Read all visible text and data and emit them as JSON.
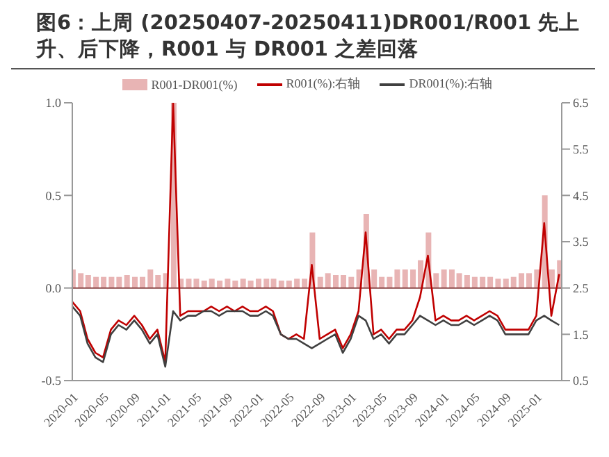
{
  "chart_data": {
    "type": "line",
    "title": "图6：上周 (20250407-20250411)DR001/R001  先上升、后下降，R001 与 DR001 之差回落",
    "x": [
      "2020-01",
      "2020-02",
      "2020-03",
      "2020-04",
      "2020-05",
      "2020-06",
      "2020-07",
      "2020-08",
      "2020-09",
      "2020-10",
      "2020-11",
      "2020-12",
      "2021-01",
      "2021-02",
      "2021-03",
      "2021-04",
      "2021-05",
      "2021-06",
      "2021-07",
      "2021-08",
      "2021-09",
      "2021-10",
      "2021-11",
      "2021-12",
      "2022-01",
      "2022-02",
      "2022-03",
      "2022-04",
      "2022-05",
      "2022-06",
      "2022-07",
      "2022-08",
      "2022-09",
      "2022-10",
      "2022-11",
      "2022-12",
      "2023-01",
      "2023-02",
      "2023-03",
      "2023-04",
      "2023-05",
      "2023-06",
      "2023-07",
      "2023-08",
      "2023-09",
      "2023-10",
      "2023-11",
      "2023-12",
      "2024-01",
      "2024-02",
      "2024-03",
      "2024-04",
      "2024-05",
      "2024-06",
      "2024-07",
      "2024-08",
      "2024-09",
      "2024-10",
      "2024-11",
      "2024-12",
      "2025-01",
      "2025-02",
      "2025-03",
      "2025-04"
    ],
    "series": [
      {
        "name": "R001-DR001(%)",
        "type": "bar",
        "color": "#e8b4b4",
        "values": [
          0.1,
          0.08,
          0.07,
          0.06,
          0.06,
          0.06,
          0.06,
          0.07,
          0.06,
          0.06,
          0.1,
          0.07,
          0.08,
          1.0,
          0.05,
          0.05,
          0.05,
          0.04,
          0.05,
          0.04,
          0.05,
          0.04,
          0.05,
          0.04,
          0.05,
          0.05,
          0.05,
          0.04,
          0.04,
          0.05,
          0.05,
          0.3,
          0.06,
          0.08,
          0.07,
          0.07,
          0.06,
          0.1,
          0.4,
          0.1,
          0.06,
          0.06,
          0.1,
          0.1,
          0.1,
          0.15,
          0.3,
          0.08,
          0.1,
          0.1,
          0.08,
          0.07,
          0.06,
          0.06,
          0.06,
          0.05,
          0.05,
          0.06,
          0.08,
          0.08,
          0.1,
          0.5,
          0.1,
          0.15
        ]
      },
      {
        "name": "R001(%):右轴",
        "axis": "y2",
        "color": "#c00000",
        "values": [
          2.2,
          2.0,
          1.4,
          1.1,
          1.0,
          1.6,
          1.8,
          1.7,
          1.9,
          1.7,
          1.4,
          1.6,
          0.9,
          6.5,
          1.9,
          2.0,
          2.0,
          2.0,
          2.1,
          2.0,
          2.1,
          2.0,
          2.1,
          2.0,
          2.0,
          2.1,
          2.0,
          1.5,
          1.4,
          1.5,
          1.4,
          3.0,
          1.4,
          1.5,
          1.6,
          1.2,
          1.5,
          2.0,
          3.7,
          1.5,
          1.6,
          1.4,
          1.6,
          1.6,
          1.8,
          2.3,
          3.2,
          1.8,
          1.9,
          1.8,
          1.8,
          1.9,
          1.8,
          1.9,
          2.0,
          1.9,
          1.6,
          1.6,
          1.6,
          1.6,
          1.9,
          3.9,
          1.9,
          2.8
        ]
      },
      {
        "name": "DR001(%):右轴",
        "axis": "y2",
        "color": "#404040",
        "values": [
          2.1,
          1.9,
          1.3,
          1.0,
          0.9,
          1.5,
          1.7,
          1.6,
          1.8,
          1.6,
          1.3,
          1.5,
          0.8,
          2.0,
          1.8,
          1.9,
          1.9,
          2.0,
          2.0,
          1.9,
          2.0,
          2.0,
          2.0,
          1.9,
          1.9,
          2.0,
          1.9,
          1.5,
          1.4,
          1.4,
          1.3,
          1.2,
          1.3,
          1.4,
          1.5,
          1.1,
          1.4,
          1.9,
          1.8,
          1.4,
          1.5,
          1.3,
          1.5,
          1.5,
          1.7,
          1.9,
          1.8,
          1.7,
          1.8,
          1.7,
          1.7,
          1.8,
          1.7,
          1.8,
          1.9,
          1.8,
          1.5,
          1.5,
          1.5,
          1.5,
          1.8,
          1.9,
          1.8,
          1.7
        ]
      }
    ],
    "xlim": [
      "2020-01-01",
      "2025-04-11"
    ],
    "xticks": [
      "2020-01",
      "2020-05",
      "2020-09",
      "2021-01",
      "2021-05",
      "2021-09",
      "2022-01",
      "2022-05",
      "2022-09",
      "2023-01",
      "2023-05",
      "2023-09",
      "2024-01",
      "2024-05",
      "2024-09",
      "2025-01"
    ],
    "ylim": [
      -0.5,
      1.0
    ],
    "yticks": [
      -0.5,
      {
        "value": 0,
        "label": "0.0"
      },
      0.5,
      {
        "value": 1.0,
        "label": "1.0"
      }
    ],
    "y2lim": [
      0.5,
      6.5
    ],
    "y2ticks": [
      0.5,
      1.5,
      2.5,
      3.5,
      4.5,
      5.5,
      6.5
    ],
    "ref_lines": [
      {
        "axis": "y",
        "value": 0,
        "color": "#8b4a4a"
      }
    ],
    "legend": "top",
    "grid": false,
    "marker": "none",
    "line_style": "solid"
  }
}
